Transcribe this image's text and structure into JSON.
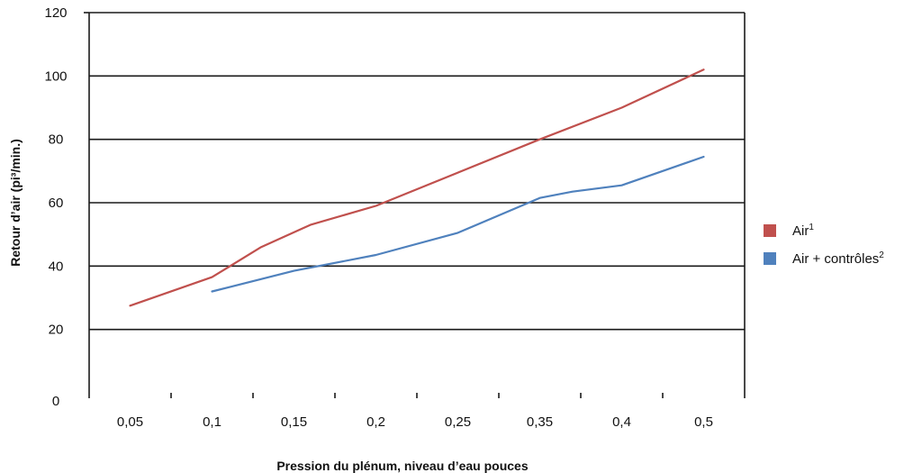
{
  "chart_data": {
    "type": "line",
    "categories": [
      "0,05",
      "0,1",
      "0,15",
      "0,2",
      "0,25",
      "0,35",
      "0,4",
      "0,5"
    ],
    "xlabel": "Pression du plénum, niveau d’eau pouces",
    "ylabel": "Retour d’air (pi³/min.)",
    "ylim": [
      0,
      120
    ],
    "yticks": [
      0,
      20,
      40,
      60,
      80,
      100,
      120
    ],
    "grid": "horizontal",
    "legend_position": "right",
    "series": [
      {
        "name": "Air¹",
        "label_text": "Air",
        "label_sup": "1",
        "color": "#c0504d",
        "points": [
          {
            "x": 0.05,
            "y": 27.5
          },
          {
            "x": 0.1,
            "y": 36.5
          },
          {
            "x": 0.13,
            "y": 46
          },
          {
            "x": 0.16,
            "y": 53
          },
          {
            "x": 0.2,
            "y": 59
          },
          {
            "x": 0.35,
            "y": 80
          },
          {
            "x": 0.4,
            "y": 90
          },
          {
            "x": 0.5,
            "y": 102
          }
        ]
      },
      {
        "name": "Air + contrôles²",
        "label_text": "Air + contrôles",
        "label_sup": "2",
        "color": "#4f81bd",
        "points": [
          {
            "x": 0.1,
            "y": 32
          },
          {
            "x": 0.15,
            "y": 38.5
          },
          {
            "x": 0.2,
            "y": 43.5
          },
          {
            "x": 0.25,
            "y": 50.5
          },
          {
            "x": 0.35,
            "y": 61.5
          },
          {
            "x": 0.37,
            "y": 63.5
          },
          {
            "x": 0.4,
            "y": 65.5
          },
          {
            "x": 0.5,
            "y": 74.5
          }
        ]
      }
    ]
  }
}
